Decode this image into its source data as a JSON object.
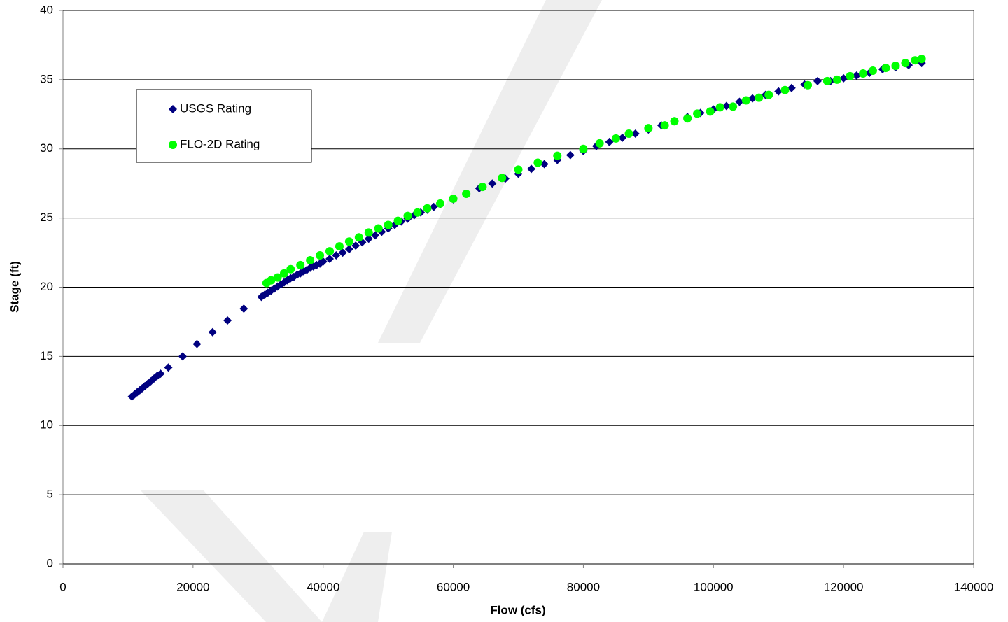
{
  "chart_data": {
    "type": "scatter",
    "xlabel": "Flow (cfs)",
    "ylabel": "Stage (ft)",
    "xlim": [
      0,
      140000
    ],
    "xticks": [
      0,
      20000,
      40000,
      60000,
      80000,
      100000,
      120000,
      140000
    ],
    "ylim": [
      0,
      40
    ],
    "yticks": [
      0,
      5,
      10,
      15,
      20,
      25,
      30,
      35,
      40
    ],
    "grid": true,
    "legend": "upper left",
    "series": [
      {
        "name": "USGS Rating",
        "color": "#000080",
        "marker": "diamond",
        "x": [
          10600,
          11000,
          11400,
          11800,
          12200,
          12600,
          13000,
          13500,
          14000,
          14500,
          15000,
          16200,
          18400,
          20600,
          23000,
          25300,
          27800,
          30500,
          31000,
          31500,
          32000,
          32500,
          33000,
          33500,
          34000,
          34500,
          35000,
          35500,
          36000,
          36500,
          37000,
          37500,
          38000,
          38500,
          39000,
          39500,
          40000,
          41000,
          42000,
          43000,
          44000,
          45000,
          46000,
          47000,
          48000,
          49000,
          50000,
          51000,
          52000,
          53000,
          54000,
          55000,
          56000,
          57000,
          58000,
          60000,
          62000,
          64000,
          66000,
          68000,
          70000,
          72000,
          74000,
          76000,
          78000,
          80000,
          82000,
          84000,
          86000,
          88000,
          90000,
          92000,
          94000,
          96000,
          98000,
          100000,
          102000,
          104000,
          106000,
          108000,
          110000,
          112000,
          114000,
          116000,
          118000,
          120000,
          122000,
          124000,
          126000,
          128000,
          130000,
          132000
        ],
        "values": [
          12.1,
          12.25,
          12.4,
          12.55,
          12.7,
          12.85,
          13.0,
          13.2,
          13.4,
          13.6,
          13.75,
          14.2,
          15.0,
          15.9,
          16.75,
          17.6,
          18.45,
          19.3,
          19.45,
          19.6,
          19.75,
          19.9,
          20.05,
          20.2,
          20.35,
          20.5,
          20.65,
          20.75,
          20.9,
          21.0,
          21.15,
          21.25,
          21.4,
          21.5,
          21.6,
          21.7,
          21.85,
          22.05,
          22.3,
          22.5,
          22.75,
          23.0,
          23.25,
          23.5,
          23.75,
          24.0,
          24.25,
          24.5,
          24.75,
          24.95,
          25.2,
          25.4,
          25.6,
          25.8,
          26.0,
          26.35,
          26.75,
          27.15,
          27.5,
          27.85,
          28.2,
          28.55,
          28.9,
          29.2,
          29.55,
          29.85,
          30.2,
          30.5,
          30.8,
          31.1,
          31.4,
          31.7,
          32.0,
          32.3,
          32.6,
          32.85,
          33.1,
          33.4,
          33.65,
          33.9,
          34.15,
          34.4,
          34.65,
          34.9,
          34.9,
          35.1,
          35.3,
          35.5,
          35.75,
          35.9,
          36.05,
          36.2
        ]
      },
      {
        "name": "FLO-2D Rating",
        "color": "#00ff00",
        "marker": "circle",
        "x": [
          31300,
          32000,
          33000,
          34000,
          35000,
          36500,
          38000,
          39500,
          41000,
          42500,
          44000,
          45500,
          47000,
          48500,
          50000,
          51500,
          53000,
          54500,
          56000,
          58000,
          60000,
          62000,
          64500,
          67500,
          70000,
          73000,
          76000,
          80000,
          82500,
          85000,
          87000,
          90000,
          92500,
          94000,
          96000,
          97500,
          99500,
          101000,
          103000,
          105000,
          107000,
          108500,
          111000,
          114500,
          117500,
          119000,
          121000,
          123000,
          124500,
          126500,
          128000,
          129500,
          131000,
          132000
        ],
        "values": [
          20.3,
          20.5,
          20.7,
          21.0,
          21.3,
          21.6,
          21.95,
          22.3,
          22.6,
          22.95,
          23.3,
          23.6,
          23.95,
          24.25,
          24.5,
          24.8,
          25.15,
          25.4,
          25.7,
          26.05,
          26.4,
          26.75,
          27.25,
          27.9,
          28.5,
          29.0,
          29.5,
          30.0,
          30.4,
          30.75,
          31.1,
          31.5,
          31.7,
          32.0,
          32.2,
          32.55,
          32.7,
          33.0,
          33.05,
          33.5,
          33.7,
          33.9,
          34.25,
          34.6,
          34.9,
          35.0,
          35.25,
          35.45,
          35.65,
          35.85,
          36.0,
          36.2,
          36.4,
          36.5
        ]
      }
    ]
  }
}
